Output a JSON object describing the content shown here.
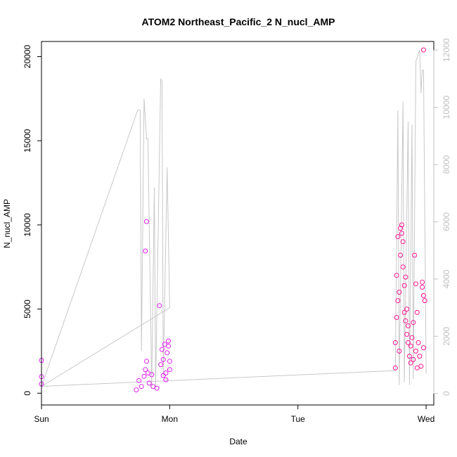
{
  "chart_data": {
    "type": "scatter",
    "title": "ATOM2 Northeast_Pacific_2 N_nucl_AMP",
    "xlabel": "Date",
    "ylabel": "N_nucl_AMP",
    "x_ticks": [
      "Sun",
      "Mon",
      "Tue",
      "Wed"
    ],
    "xlim": [
      0,
      3.06
    ],
    "ylim": [
      -700,
      20900
    ],
    "y_ticks": [
      0,
      5000,
      10000,
      15000,
      20000
    ],
    "y2lim": [
      -400,
      12300
    ],
    "y2_ticks": [
      0,
      2000,
      4000,
      6000,
      8000,
      10000,
      12000
    ],
    "grid": false,
    "colors": {
      "early_points": "#e01ef0",
      "late_points": "#ff1493",
      "line": "#c8c8c8",
      "axis": "#000000",
      "right_axis": "#c0c0c0"
    },
    "series": [
      {
        "type": "scatter",
        "axis": "left",
        "color": "#e01ef0",
        "points": [
          [
            0.0,
            1950
          ],
          [
            0.0,
            980
          ],
          [
            0.0,
            550
          ],
          [
            0.74,
            200
          ],
          [
            0.76,
            750
          ],
          [
            0.78,
            400
          ],
          [
            0.8,
            1000
          ],
          [
            0.81,
            1400
          ],
          [
            0.82,
            1900
          ],
          [
            0.82,
            10200
          ],
          [
            0.81,
            8450
          ],
          [
            0.83,
            1200
          ],
          [
            0.84,
            600
          ],
          [
            0.86,
            1100
          ],
          [
            0.87,
            400
          ],
          [
            0.9,
            300
          ],
          [
            0.92,
            5200
          ],
          [
            0.93,
            1700
          ],
          [
            0.94,
            2600
          ],
          [
            0.95,
            2000
          ],
          [
            0.96,
            2900
          ],
          [
            0.97,
            800
          ],
          [
            0.98,
            2400
          ],
          [
            0.99,
            3100
          ],
          [
            0.99,
            2800
          ],
          [
            1.0,
            1900
          ],
          [
            1.0,
            1400
          ],
          [
            0.97,
            1200
          ],
          [
            0.95,
            1050
          ]
        ]
      },
      {
        "type": "scatter",
        "axis": "left",
        "color": "#ff1493",
        "points": [
          [
            2.76,
            1500
          ],
          [
            2.76,
            3000
          ],
          [
            2.77,
            4500
          ],
          [
            2.77,
            7000
          ],
          [
            2.78,
            9300
          ],
          [
            2.78,
            5500
          ],
          [
            2.79,
            2500
          ],
          [
            2.8,
            8200
          ],
          [
            2.8,
            9800
          ],
          [
            2.81,
            10000
          ],
          [
            2.81,
            9500
          ],
          [
            2.82,
            9000
          ],
          [
            2.82,
            7500
          ],
          [
            2.83,
            6400
          ],
          [
            2.83,
            4800
          ],
          [
            2.84,
            6900
          ],
          [
            2.84,
            4300
          ],
          [
            2.85,
            5000
          ],
          [
            2.85,
            3500
          ],
          [
            2.86,
            3000
          ],
          [
            2.87,
            2200
          ],
          [
            2.88,
            2800
          ],
          [
            2.89,
            3300
          ],
          [
            2.9,
            4200
          ],
          [
            2.9,
            2000
          ],
          [
            2.91,
            8200
          ],
          [
            2.92,
            6500
          ],
          [
            2.93,
            4800
          ],
          [
            2.93,
            1500
          ],
          [
            2.94,
            3000
          ],
          [
            2.95,
            2200
          ],
          [
            2.96,
            1600
          ],
          [
            2.97,
            6600
          ],
          [
            2.97,
            6300
          ],
          [
            2.98,
            5800
          ],
          [
            2.98,
            2700
          ],
          [
            2.99,
            5500
          ],
          [
            2.98,
            20400
          ],
          [
            2.79,
            6000
          ],
          [
            2.86,
            4000
          ],
          [
            2.88,
            1800
          ],
          [
            2.92,
            2500
          ]
        ]
      },
      {
        "type": "line",
        "axis": "right",
        "color": "#c8c8c8",
        "points": [
          [
            0.0,
            250
          ],
          [
            0.75,
            9900
          ],
          [
            0.77,
            9900
          ],
          [
            0.78,
            1500
          ],
          [
            0.8,
            10300
          ],
          [
            0.82,
            8900
          ],
          [
            0.83,
            8900
          ],
          [
            0.86,
            200
          ],
          [
            0.88,
            7200
          ],
          [
            0.89,
            200
          ],
          [
            0.93,
            11000
          ],
          [
            0.94,
            10900
          ],
          [
            0.95,
            600
          ],
          [
            0.98,
            7900
          ],
          [
            1.0,
            3000
          ],
          [
            0.0,
            250
          ],
          [
            2.76,
            800
          ],
          [
            2.78,
            9900
          ],
          [
            2.79,
            300
          ],
          [
            2.82,
            10200
          ],
          [
            2.83,
            400
          ],
          [
            2.86,
            9500
          ],
          [
            2.87,
            300
          ],
          [
            2.89,
            9400
          ],
          [
            2.9,
            500
          ],
          [
            2.92,
            11600
          ],
          [
            2.95,
            12000
          ],
          [
            2.96,
            10500
          ],
          [
            2.97,
            11300
          ],
          [
            2.98,
            11300
          ],
          [
            3.0,
            700
          ]
        ]
      }
    ]
  }
}
